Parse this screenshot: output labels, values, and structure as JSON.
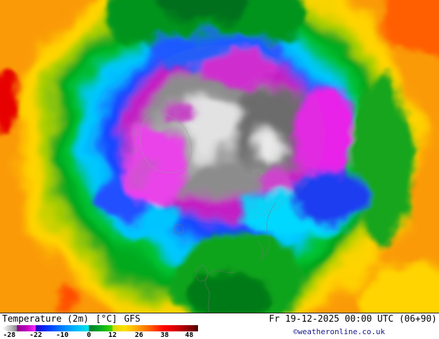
{
  "bottom_bar": {
    "product": "Temperature (2m)",
    "units": "[°C]",
    "model": "GFS",
    "valid_time": "Fr 19-12-2025 00:00 UTC (06+90)",
    "copyright": "©weatheronline.co.uk"
  },
  "scale": {
    "unit": "°C",
    "ticks": [
      {
        "label": "-28",
        "pos": 4
      },
      {
        "label": "-22",
        "pos": 17.5
      },
      {
        "label": "-10",
        "pos": 31
      },
      {
        "label": "0",
        "pos": 44.5
      },
      {
        "label": "12",
        "pos": 56.5
      },
      {
        "label": "26",
        "pos": 70
      },
      {
        "label": "38",
        "pos": 83
      },
      {
        "label": "48",
        "pos": 95.5
      }
    ],
    "gradient_stops": [
      {
        "pos": 0,
        "color": "#ffffff"
      },
      {
        "pos": 2,
        "color": "#e8e8e8"
      },
      {
        "pos": 5,
        "color": "#bbbbbb"
      },
      {
        "pos": 8,
        "color": "#858585"
      },
      {
        "pos": 8,
        "color": "#8f008f"
      },
      {
        "pos": 13,
        "color": "#c000c0"
      },
      {
        "pos": 17.5,
        "color": "#ff30ff"
      },
      {
        "pos": 17.5,
        "color": "#2800c8"
      },
      {
        "pos": 23,
        "color": "#0030ff"
      },
      {
        "pos": 31,
        "color": "#0080ff"
      },
      {
        "pos": 37,
        "color": "#00b4ff"
      },
      {
        "pos": 44.5,
        "color": "#00e6e6"
      },
      {
        "pos": 44.5,
        "color": "#007830"
      },
      {
        "pos": 50,
        "color": "#00aa22"
      },
      {
        "pos": 56.5,
        "color": "#40d800"
      },
      {
        "pos": 56.5,
        "color": "#d8d800"
      },
      {
        "pos": 63,
        "color": "#ffe000"
      },
      {
        "pos": 70,
        "color": "#ff9c00"
      },
      {
        "pos": 76,
        "color": "#ff5a00"
      },
      {
        "pos": 83,
        "color": "#ff0000"
      },
      {
        "pos": 89,
        "color": "#d40000"
      },
      {
        "pos": 95.5,
        "color": "#8c0000"
      },
      {
        "pos": 100,
        "color": "#500000"
      }
    ]
  }
}
